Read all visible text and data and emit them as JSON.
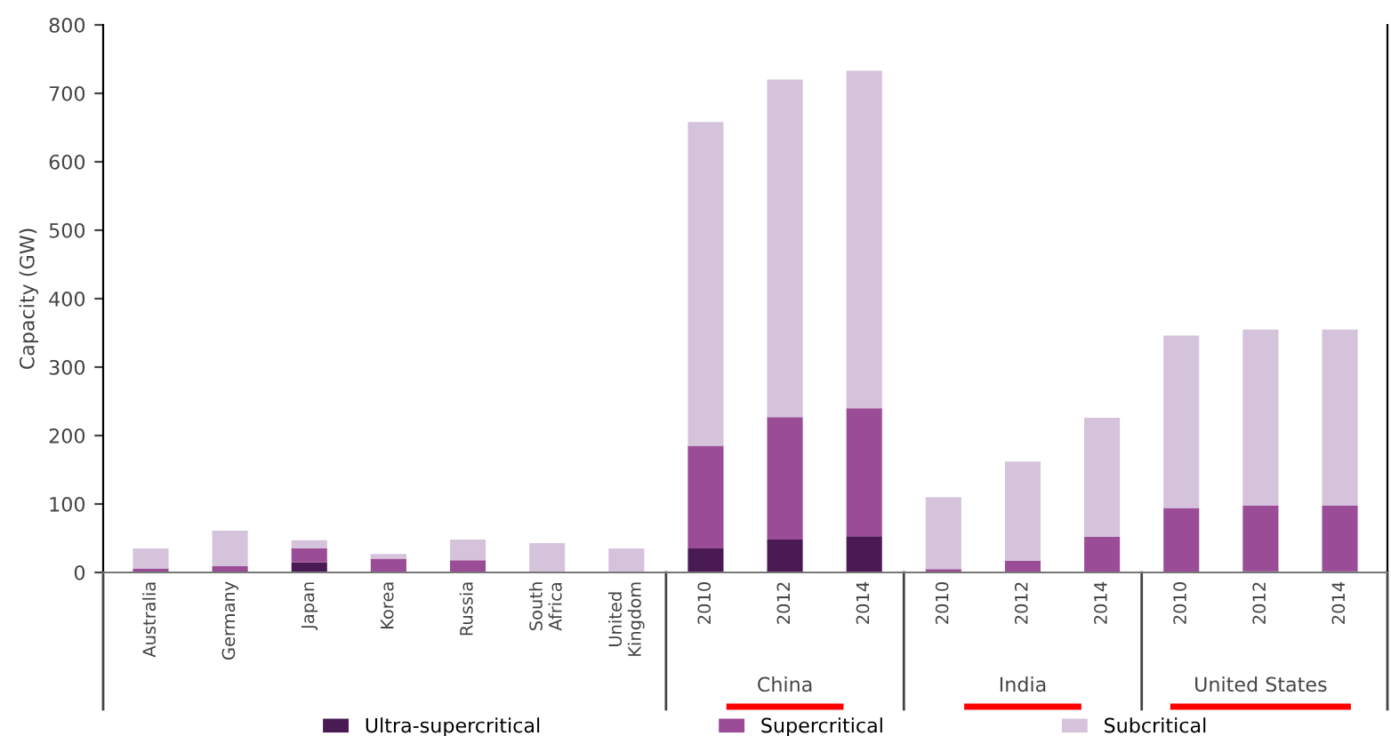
{
  "chart_data": {
    "type": "bar",
    "stacked": true,
    "ylabel": "Capacity (GW)",
    "categories": [
      "Australia",
      "Germany",
      "Japan",
      "Korea",
      "Russia",
      "South\nAfrica",
      "United\nKingdom",
      "2010",
      "2012",
      "2014",
      "2010",
      "2012",
      "2014",
      "2010",
      "2012",
      "2014"
    ],
    "series": [
      {
        "name": "Ultra-supercritical",
        "color": "#4a1a55",
        "values": [
          0,
          null,
          15,
          null,
          0,
          0,
          0,
          35,
          48,
          53,
          0,
          0,
          0,
          0,
          2,
          2
        ]
      },
      {
        "name": "Supercritical",
        "color": "#9a4d96",
        "values": [
          6,
          9,
          20,
          20,
          18,
          0,
          0,
          150,
          179,
          187,
          5,
          17,
          52,
          94,
          96,
          96
        ]
      },
      {
        "name": "Subcritical",
        "color": "#d5c3dc",
        "values": [
          29,
          52,
          12,
          7,
          30,
          43,
          35,
          473,
          493,
          493,
          105,
          145,
          174,
          252,
          257,
          257
        ]
      }
    ],
    "annotations": [
      "China",
      "India",
      "United States"
    ],
    "ylim": [
      0,
      800
    ],
    "yticks": [
      0,
      100,
      200,
      300,
      400,
      500,
      600,
      700,
      800
    ],
    "grid": false,
    "legend": "bottom"
  }
}
